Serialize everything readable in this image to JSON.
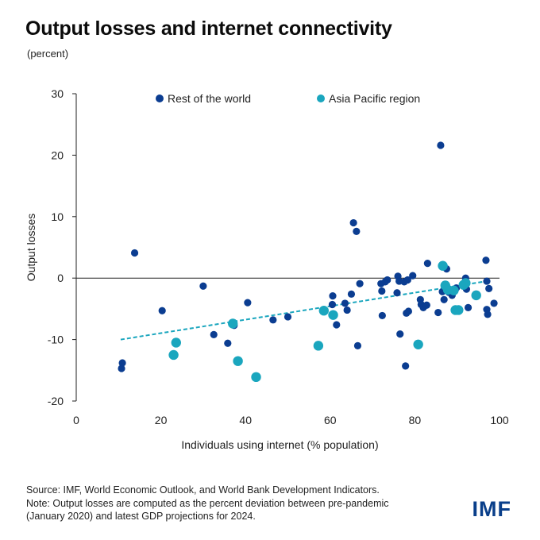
{
  "title": "Output losses and internet connectivity",
  "subtitle": "(percent)",
  "source_line1": "Source: IMF, World Economic Outlook, and World Bank Development Indicators.",
  "source_line2": "Note: Output losses are computed as the percent deviation between pre-pandemic",
  "source_line3": "(January 2020) and latest GDP projections for 2024.",
  "logo": "IMF",
  "chart_data": {
    "type": "scatter",
    "title": "Output losses and internet connectivity",
    "xlabel": "Individuals using internet (% population)",
    "ylabel": "Output losses",
    "xlim": [
      0,
      100
    ],
    "ylim": [
      -20,
      30
    ],
    "xticks": [
      0,
      20,
      40,
      60,
      80,
      100
    ],
    "yticks": [
      30,
      20,
      10,
      0,
      -10,
      -20
    ],
    "legend_position": "top",
    "grid": false,
    "trendline": {
      "series": "Asia Pacific region",
      "style": "dashed",
      "x": [
        10.5,
        97
      ],
      "y": [
        -10,
        -0.5
      ]
    },
    "series": [
      {
        "name": "Rest of the world",
        "color": "#0b3d91",
        "points": [
          [
            10.7,
            -14.7
          ],
          [
            10.9,
            -13.8
          ],
          [
            13.8,
            4.1
          ],
          [
            20.3,
            -5.3
          ],
          [
            30,
            -1.3
          ],
          [
            32.5,
            -9.2
          ],
          [
            35.8,
            -10.6
          ],
          [
            37.3,
            -7.7
          ],
          [
            40.5,
            -4
          ],
          [
            46.5,
            -6.8
          ],
          [
            50,
            -6.3
          ],
          [
            60.5,
            -4.3
          ],
          [
            60.6,
            -2.9
          ],
          [
            61.5,
            -7.6
          ],
          [
            63.5,
            -4.1
          ],
          [
            64,
            -5.2
          ],
          [
            65,
            -2.6
          ],
          [
            65.5,
            9
          ],
          [
            66.2,
            7.6
          ],
          [
            66.5,
            -11
          ],
          [
            67,
            -0.9
          ],
          [
            72,
            -0.9
          ],
          [
            72.2,
            -2.1
          ],
          [
            72.3,
            -6.1
          ],
          [
            73,
            -0.6
          ],
          [
            73.5,
            -0.3
          ],
          [
            75.8,
            -2.4
          ],
          [
            76,
            0.3
          ],
          [
            76.3,
            -0.5
          ],
          [
            76.5,
            -9.1
          ],
          [
            77.5,
            -0.6
          ],
          [
            77.8,
            -14.3
          ],
          [
            78,
            -5.7
          ],
          [
            78.3,
            -0.3
          ],
          [
            78.5,
            -5.4
          ],
          [
            79.5,
            0.4
          ],
          [
            81.3,
            -3.5
          ],
          [
            81.5,
            -4.3
          ],
          [
            82,
            -4.8
          ],
          [
            82.8,
            -4.4
          ],
          [
            83,
            2.4
          ],
          [
            85.5,
            -5.6
          ],
          [
            86.1,
            21.6
          ],
          [
            86.5,
            -2.2
          ],
          [
            86.9,
            -3.5
          ],
          [
            87.5,
            1.5
          ],
          [
            88,
            -2.3
          ],
          [
            88.8,
            -2.8
          ],
          [
            89.8,
            -1.6
          ],
          [
            90.5,
            -5.1
          ],
          [
            91.3,
            -1.2
          ],
          [
            91.7,
            -0.8
          ],
          [
            92,
            0
          ],
          [
            92.2,
            -1.8
          ],
          [
            92.6,
            -4.8
          ],
          [
            96.8,
            2.9
          ],
          [
            97,
            -0.5
          ],
          [
            97,
            -5.1
          ],
          [
            97.2,
            -5.9
          ],
          [
            97.5,
            -1.7
          ],
          [
            98.7,
            -4.1
          ]
        ]
      },
      {
        "name": "Asia Pacific region",
        "color": "#1aa6be",
        "points": [
          [
            23,
            -12.5
          ],
          [
            23.6,
            -10.5
          ],
          [
            37,
            -7.4
          ],
          [
            38.2,
            -13.5
          ],
          [
            42.5,
            -16.1
          ],
          [
            57.2,
            -11
          ],
          [
            58.5,
            -5.3
          ],
          [
            60.7,
            -6
          ],
          [
            80.8,
            -10.8
          ],
          [
            86.6,
            2
          ],
          [
            87.2,
            -1.2
          ],
          [
            87.8,
            -1.9
          ],
          [
            89.2,
            -2
          ],
          [
            89.6,
            -5.2
          ],
          [
            90.3,
            -5.2
          ],
          [
            91.5,
            -1.1
          ],
          [
            92,
            -0.8
          ],
          [
            94.5,
            -2.8
          ]
        ]
      }
    ]
  }
}
